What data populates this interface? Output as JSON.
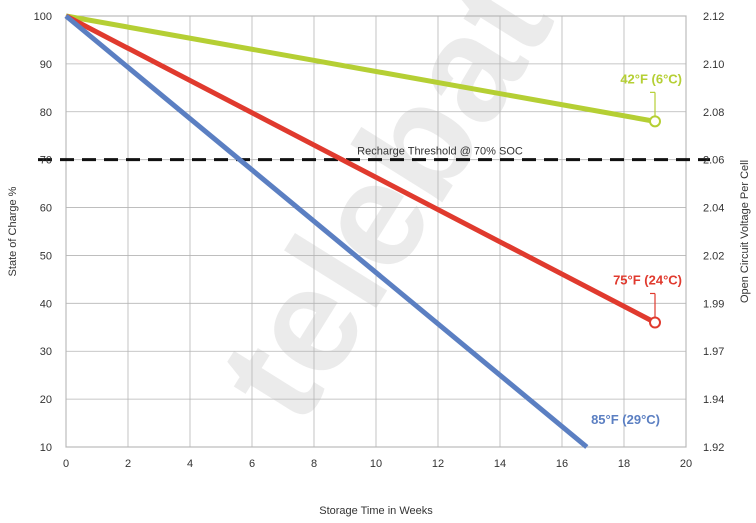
{
  "chart_data": {
    "type": "line",
    "xlabel": "Storage Time in Weeks",
    "ylabel": "State of Charge %",
    "y2label": "Open Circuit Voltage Per Cell",
    "xlim": [
      0,
      20
    ],
    "ylim": [
      10,
      100
    ],
    "x_ticks": [
      "0",
      "2",
      "4",
      "6",
      "8",
      "10",
      "12",
      "14",
      "16",
      "18",
      "20"
    ],
    "y_ticks": [
      "10",
      "20",
      "30",
      "40",
      "50",
      "60",
      "70",
      "80",
      "90",
      "100"
    ],
    "y2_ticks": [
      "1.92",
      "1.94",
      "1.97",
      "1.99",
      "2.02",
      "2.04",
      "2.06",
      "2.08",
      "2.10",
      "2.12"
    ],
    "grid": true,
    "threshold": {
      "label": "Recharge Threshold @ 70% SOC",
      "y": 70
    },
    "watermark": "telebat",
    "series": [
      {
        "name": "42°F (6°C)",
        "color": "#b5cf34",
        "x": [
          0,
          19
        ],
        "y": [
          100,
          78
        ],
        "end_marker": true
      },
      {
        "name": "75°F (24°C)",
        "color": "#e03a2e",
        "x": [
          0,
          19
        ],
        "y": [
          100,
          36
        ],
        "end_marker": true
      },
      {
        "name": "85°F (29°C)",
        "color": "#5b7fc2",
        "x": [
          0,
          16.8
        ],
        "y": [
          100,
          10
        ],
        "end_marker": false
      }
    ]
  }
}
